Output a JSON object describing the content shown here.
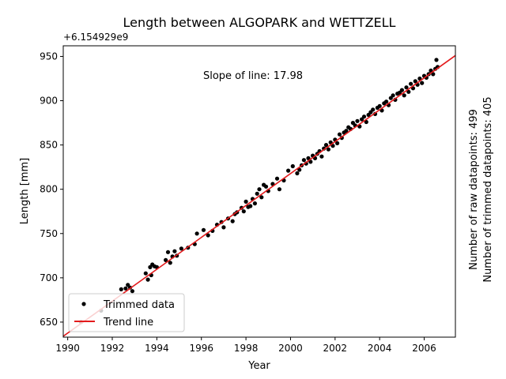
{
  "chart_data": {
    "type": "scatter",
    "title": "Length between ALGOPARK and WETTZELL",
    "xlabel": "Year",
    "ylabel": "Length [mm]",
    "y_offset_label": "+6.154929e9",
    "xlim": [
      1989.8,
      2007.4
    ],
    "ylim": [
      633,
      962
    ],
    "xticks": [
      1990,
      1992,
      1994,
      1996,
      1998,
      2000,
      2002,
      2004,
      2006
    ],
    "yticks": [
      650,
      700,
      750,
      800,
      850,
      900,
      950
    ],
    "annotation": "Slope of line: 17.98",
    "side_text_1": "Number of raw datapoints: 499",
    "side_text_2": "Number of trimmed datapoints: 405",
    "legend_position": "lower left",
    "grid": false,
    "series": [
      {
        "name": "Trimmed data",
        "kind": "scatter",
        "color": "#000000",
        "x": [
          1990.6,
          1991.5,
          1992.4,
          1992.6,
          1992.7,
          1992.8,
          1992.9,
          1993.5,
          1993.6,
          1993.7,
          1993.75,
          1993.8,
          1993.9,
          1994.0,
          1994.4,
          1994.5,
          1994.6,
          1994.7,
          1994.8,
          1994.9,
          1995.1,
          1995.4,
          1995.7,
          1995.8,
          1996.1,
          1996.3,
          1996.5,
          1996.7,
          1996.9,
          1997.0,
          1997.2,
          1997.4,
          1997.5,
          1997.6,
          1997.8,
          1997.9,
          1998.0,
          1998.1,
          1998.2,
          1998.3,
          1998.4,
          1998.5,
          1998.6,
          1998.7,
          1998.8,
          1998.9,
          1999.0,
          1999.2,
          1999.4,
          1999.5,
          1999.7,
          1999.9,
          2000.1,
          2000.3,
          2000.4,
          2000.5,
          2000.6,
          2000.7,
          2000.8,
          2000.9,
          2001.0,
          2001.1,
          2001.2,
          2001.3,
          2001.4,
          2001.5,
          2001.6,
          2001.7,
          2001.8,
          2001.9,
          2002.0,
          2002.1,
          2002.2,
          2002.3,
          2002.4,
          2002.5,
          2002.6,
          2002.7,
          2002.8,
          2002.9,
          2003.0,
          2003.1,
          2003.2,
          2003.3,
          2003.4,
          2003.5,
          2003.6,
          2003.7,
          2003.8,
          2003.9,
          2004.0,
          2004.1,
          2004.2,
          2004.3,
          2004.4,
          2004.5,
          2004.6,
          2004.7,
          2004.8,
          2004.9,
          2005.0,
          2005.1,
          2005.2,
          2005.3,
          2005.4,
          2005.5,
          2005.6,
          2005.7,
          2005.8,
          2005.9,
          2006.0,
          2006.1,
          2006.2,
          2006.3,
          2006.4,
          2006.5,
          2006.55,
          2006.6
        ],
        "y": [
          650,
          663,
          687,
          688,
          692,
          689,
          685,
          705,
          698,
          712,
          703,
          715,
          713,
          712,
          720,
          729,
          717,
          724,
          730,
          725,
          733,
          734,
          738,
          750,
          754,
          748,
          753,
          760,
          763,
          757,
          767,
          764,
          772,
          774,
          779,
          775,
          786,
          780,
          781,
          789,
          784,
          795,
          800,
          791,
          805,
          803,
          798,
          806,
          812,
          800,
          810,
          821,
          826,
          818,
          822,
          827,
          833,
          829,
          835,
          831,
          838,
          835,
          840,
          843,
          837,
          846,
          850,
          845,
          853,
          849,
          856,
          852,
          862,
          858,
          864,
          866,
          870,
          868,
          875,
          872,
          877,
          871,
          879,
          882,
          876,
          884,
          887,
          890,
          885,
          892,
          894,
          889,
          897,
          899,
          895,
          903,
          906,
          901,
          908,
          909,
          912,
          906,
          915,
          910,
          919,
          914,
          922,
          918,
          925,
          920,
          928,
          926,
          930,
          934,
          930,
          936,
          946,
          938
        ]
      },
      {
        "name": "Trend line",
        "kind": "line",
        "color": "#e31a1c",
        "x": [
          1989.8,
          2007.4
        ],
        "y": [
          634,
          951
        ]
      }
    ]
  }
}
